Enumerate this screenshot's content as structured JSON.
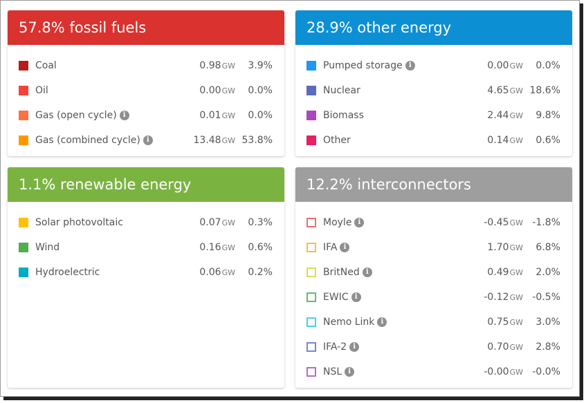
{
  "colors": {
    "fossil": "#d9322f",
    "other": "#0d8fd4",
    "renewable": "#7bb341",
    "interconnectors": "#9e9e9e"
  },
  "icons": {
    "info": "info-icon"
  },
  "fossil": {
    "title": "57.8% fossil fuels",
    "rows": [
      {
        "label": "Coal",
        "info": false,
        "gw": "0.98",
        "unit": "GW",
        "pct": "3.9%",
        "color": "#b71c1c",
        "style": "filled"
      },
      {
        "label": "Oil",
        "info": false,
        "gw": "0.00",
        "unit": "GW",
        "pct": "0.0%",
        "color": "#f44336",
        "style": "filled"
      },
      {
        "label": "Gas (open cycle)",
        "info": true,
        "info_glyph": "i",
        "gw": "0.01",
        "unit": "GW",
        "pct": "0.0%",
        "color": "#ff7043",
        "style": "filled"
      },
      {
        "label": "Gas (combined cycle)",
        "info": true,
        "info_glyph": "i",
        "gw": "13.48",
        "unit": "GW",
        "pct": "53.8%",
        "color": "#ff9800",
        "style": "filled"
      }
    ]
  },
  "other": {
    "title": "28.9% other energy",
    "rows": [
      {
        "label": "Pumped storage",
        "info": true,
        "info_glyph": "i",
        "gw": "0.00",
        "unit": "GW",
        "pct": "0.0%",
        "color": "#2196f3",
        "style": "filled"
      },
      {
        "label": "Nuclear",
        "info": false,
        "gw": "4.65",
        "unit": "GW",
        "pct": "18.6%",
        "color": "#5c6bc0",
        "style": "filled"
      },
      {
        "label": "Biomass",
        "info": false,
        "gw": "2.44",
        "unit": "GW",
        "pct": "9.8%",
        "color": "#ab47bc",
        "style": "filled"
      },
      {
        "label": "Other",
        "info": false,
        "gw": "0.14",
        "unit": "GW",
        "pct": "0.6%",
        "color": "#e91e63",
        "style": "filled"
      }
    ]
  },
  "renewable": {
    "title": "1.1% renewable energy",
    "rows": [
      {
        "label": "Solar photovoltaic",
        "info": false,
        "gw": "0.07",
        "unit": "GW",
        "pct": "0.3%",
        "color": "#ffc107",
        "style": "filled"
      },
      {
        "label": "Wind",
        "info": false,
        "gw": "0.16",
        "unit": "GW",
        "pct": "0.6%",
        "color": "#4caf50",
        "style": "filled"
      },
      {
        "label": "Hydroelectric",
        "info": false,
        "gw": "0.06",
        "unit": "GW",
        "pct": "0.2%",
        "color": "#00acc1",
        "style": "filled"
      }
    ]
  },
  "interconnectors": {
    "title": "12.2% interconnectors",
    "rows": [
      {
        "label": "Moyle",
        "info": true,
        "info_glyph": "i",
        "gw": "-0.45",
        "unit": "GW",
        "pct": "-1.8%",
        "color": "#e57373",
        "style": "outline"
      },
      {
        "label": "IFA",
        "info": true,
        "info_glyph": "i",
        "gw": "1.70",
        "unit": "GW",
        "pct": "6.8%",
        "color": "#ffb74d",
        "style": "outline"
      },
      {
        "label": "BritNed",
        "info": true,
        "info_glyph": "i",
        "gw": "0.49",
        "unit": "GW",
        "pct": "2.0%",
        "color": "#d4e157",
        "style": "outline"
      },
      {
        "label": "EWIC",
        "info": true,
        "info_glyph": "i",
        "gw": "-0.12",
        "unit": "GW",
        "pct": "-0.5%",
        "color": "#66bb6a",
        "style": "outline"
      },
      {
        "label": "Nemo Link",
        "info": true,
        "info_glyph": "i",
        "gw": "0.75",
        "unit": "GW",
        "pct": "3.0%",
        "color": "#4dd0e1",
        "style": "outline"
      },
      {
        "label": "IFA-2",
        "info": true,
        "info_glyph": "i",
        "gw": "0.70",
        "unit": "GW",
        "pct": "2.8%",
        "color": "#7986cb",
        "style": "outline"
      },
      {
        "label": "NSL",
        "info": true,
        "info_glyph": "i",
        "gw": "-0.00",
        "unit": "GW",
        "pct": "-0.0%",
        "color": "#ba68c8",
        "style": "outline"
      }
    ]
  }
}
